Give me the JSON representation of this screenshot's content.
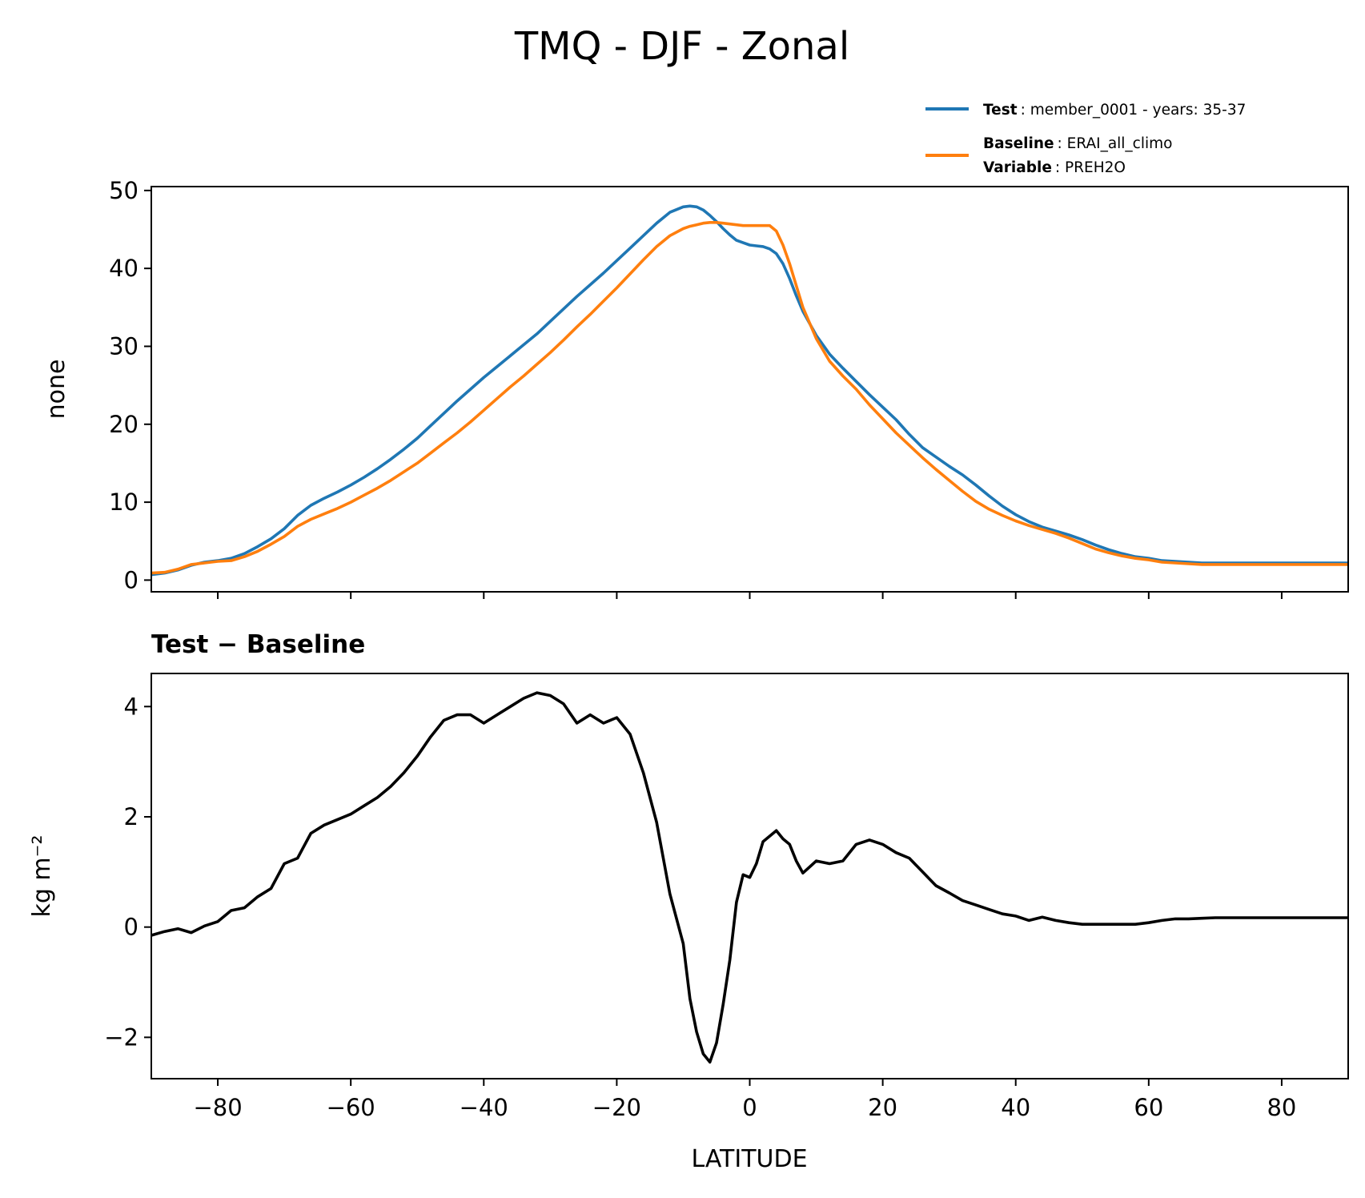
{
  "figure": {
    "title": "TMQ - DJF - Zonal",
    "colors": {
      "test": "#1f77b4",
      "baseline": "#ff7f0e",
      "diff": "#000000"
    }
  },
  "legend": {
    "test": {
      "key": "Test",
      "value": ": member_0001 - years: 35-37"
    },
    "baseline": {
      "key": "Baseline",
      "value": ": ERAI_all_climo"
    },
    "variable": {
      "key": "Variable",
      "value": ": PREH2O"
    }
  },
  "chart_data": [
    {
      "type": "line",
      "title": "",
      "xlabel": "",
      "ylabel": "none",
      "xlim": [
        -90,
        90
      ],
      "ylim": [
        -1.5,
        50.5
      ],
      "xticks": [
        -80,
        -60,
        -40,
        -20,
        0,
        20,
        40,
        60,
        80
      ],
      "show_xtick_labels": false,
      "yticks": [
        0,
        10,
        20,
        30,
        40,
        50
      ],
      "ytick_labels": [
        "0",
        "10",
        "20",
        "30",
        "40",
        "50"
      ],
      "x": [
        -90,
        -88,
        -86,
        -84,
        -82,
        -80,
        -78,
        -76,
        -74,
        -72,
        -70,
        -68,
        -66,
        -64,
        -62,
        -60,
        -58,
        -56,
        -54,
        -52,
        -50,
        -48,
        -46,
        -44,
        -42,
        -40,
        -38,
        -36,
        -34,
        -32,
        -30,
        -28,
        -26,
        -24,
        -22,
        -20,
        -18,
        -16,
        -14,
        -12,
        -10,
        -9,
        -8,
        -7,
        -6,
        -5,
        -4,
        -3,
        -2,
        -1,
        0,
        1,
        2,
        3,
        4,
        5,
        6,
        7,
        8,
        10,
        12,
        14,
        16,
        18,
        20,
        22,
        24,
        26,
        28,
        30,
        32,
        34,
        36,
        38,
        40,
        42,
        44,
        46,
        48,
        50,
        52,
        54,
        56,
        58,
        60,
        62,
        64,
        66,
        68,
        70,
        72,
        74,
        76,
        78,
        80,
        82,
        84,
        86,
        88,
        90
      ],
      "series": [
        {
          "name": "Test",
          "color": "#1f77b4",
          "values": [
            0.7,
            0.9,
            1.3,
            1.9,
            2.3,
            2.5,
            2.8,
            3.4,
            4.3,
            5.3,
            6.6,
            8.3,
            9.6,
            10.5,
            11.3,
            12.2,
            13.2,
            14.3,
            15.5,
            16.8,
            18.2,
            19.8,
            21.4,
            23.0,
            24.5,
            26.0,
            27.4,
            28.8,
            30.2,
            31.6,
            33.2,
            34.8,
            36.4,
            37.9,
            39.4,
            41.0,
            42.6,
            44.2,
            45.8,
            47.2,
            47.9,
            48.0,
            47.9,
            47.5,
            46.8,
            46.0,
            45.1,
            44.3,
            43.6,
            43.3,
            43.0,
            42.9,
            42.8,
            42.5,
            41.9,
            40.6,
            38.7,
            36.5,
            34.5,
            31.4,
            29.0,
            27.2,
            25.5,
            23.8,
            22.2,
            20.6,
            18.7,
            17.0,
            15.8,
            14.6,
            13.5,
            12.2,
            10.8,
            9.5,
            8.4,
            7.5,
            6.8,
            6.3,
            5.8,
            5.2,
            4.5,
            3.9,
            3.4,
            3.0,
            2.8,
            2.5,
            2.4,
            2.3,
            2.2,
            2.2,
            2.2,
            2.2,
            2.2,
            2.2,
            2.2,
            2.2,
            2.2,
            2.2,
            2.2,
            2.2
          ]
        },
        {
          "name": "Baseline",
          "color": "#ff7f0e",
          "values": [
            0.9,
            1.0,
            1.4,
            2.0,
            2.2,
            2.4,
            2.5,
            3.0,
            3.7,
            4.6,
            5.6,
            6.9,
            7.8,
            8.5,
            9.2,
            10.0,
            10.9,
            11.8,
            12.8,
            13.9,
            15.0,
            16.3,
            17.6,
            18.9,
            20.3,
            21.8,
            23.3,
            24.8,
            26.2,
            27.7,
            29.2,
            30.8,
            32.5,
            34.1,
            35.8,
            37.5,
            39.3,
            41.1,
            42.8,
            44.2,
            45.1,
            45.4,
            45.6,
            45.8,
            45.9,
            45.9,
            45.8,
            45.7,
            45.6,
            45.5,
            45.5,
            45.5,
            45.5,
            45.5,
            44.8,
            43.0,
            40.6,
            37.8,
            35.0,
            31.0,
            28.1,
            26.2,
            24.5,
            22.5,
            20.7,
            18.9,
            17.3,
            15.7,
            14.2,
            12.8,
            11.4,
            10.1,
            9.1,
            8.3,
            7.6,
            7.0,
            6.5,
            6.0,
            5.4,
            4.7,
            4.0,
            3.5,
            3.1,
            2.8,
            2.6,
            2.3,
            2.2,
            2.1,
            2.0,
            2.0,
            2.0,
            2.0,
            2.0,
            2.0,
            2.0,
            2.0,
            2.0,
            2.0,
            2.0,
            2.0
          ]
        }
      ]
    },
    {
      "type": "line",
      "title": "Test − Baseline",
      "xlabel": "LATITUDE",
      "ylabel": "kg m⁻²",
      "xlim": [
        -90,
        90
      ],
      "ylim": [
        -2.75,
        4.6
      ],
      "xticks": [
        -80,
        -60,
        -40,
        -20,
        0,
        20,
        40,
        60,
        80
      ],
      "xtick_labels": [
        "−80",
        "−60",
        "−40",
        "−20",
        "0",
        "20",
        "40",
        "60",
        "80"
      ],
      "yticks": [
        -2,
        0,
        2,
        4
      ],
      "ytick_labels": [
        "−2",
        "0",
        "2",
        "4"
      ],
      "x": [
        -90,
        -88,
        -86,
        -84,
        -82,
        -80,
        -78,
        -76,
        -74,
        -72,
        -70,
        -68,
        -66,
        -64,
        -62,
        -60,
        -58,
        -56,
        -54,
        -52,
        -50,
        -48,
        -46,
        -44,
        -42,
        -40,
        -38,
        -36,
        -34,
        -32,
        -30,
        -28,
        -26,
        -24,
        -22,
        -20,
        -18,
        -16,
        -14,
        -12,
        -10,
        -9,
        -8,
        -7,
        -6,
        -5,
        -4,
        -3,
        -2,
        -1,
        0,
        1,
        2,
        3,
        4,
        5,
        6,
        7,
        8,
        10,
        12,
        14,
        16,
        18,
        20,
        22,
        24,
        26,
        28,
        30,
        32,
        34,
        36,
        38,
        40,
        42,
        44,
        46,
        48,
        50,
        52,
        54,
        56,
        58,
        60,
        62,
        64,
        66,
        68,
        70,
        72,
        74,
        76,
        78,
        80,
        82,
        84,
        86,
        88,
        90
      ],
      "series": [
        {
          "name": "Test − Baseline",
          "color": "#000000",
          "values": [
            -0.15,
            -0.08,
            -0.03,
            -0.1,
            0.02,
            0.1,
            0.3,
            0.35,
            0.55,
            0.7,
            1.15,
            1.25,
            1.7,
            1.85,
            1.95,
            2.05,
            2.2,
            2.35,
            2.55,
            2.8,
            3.1,
            3.45,
            3.75,
            3.85,
            3.85,
            3.7,
            3.85,
            4.0,
            4.15,
            4.25,
            4.2,
            4.05,
            3.7,
            3.85,
            3.7,
            3.8,
            3.5,
            2.8,
            1.9,
            0.6,
            -0.3,
            -1.3,
            -1.9,
            -2.3,
            -2.45,
            -2.1,
            -1.4,
            -0.6,
            0.45,
            0.95,
            0.9,
            1.15,
            1.55,
            1.65,
            1.75,
            1.6,
            1.5,
            1.2,
            0.98,
            1.2,
            1.15,
            1.2,
            1.5,
            1.58,
            1.5,
            1.35,
            1.25,
            1.0,
            0.75,
            0.62,
            0.48,
            0.4,
            0.32,
            0.24,
            0.2,
            0.12,
            0.18,
            0.12,
            0.08,
            0.05,
            0.05,
            0.05,
            0.05,
            0.05,
            0.08,
            0.12,
            0.15,
            0.15,
            0.16,
            0.17,
            0.17,
            0.17,
            0.17,
            0.17,
            0.17,
            0.17,
            0.17,
            0.17,
            0.17,
            0.17
          ]
        }
      ]
    }
  ]
}
